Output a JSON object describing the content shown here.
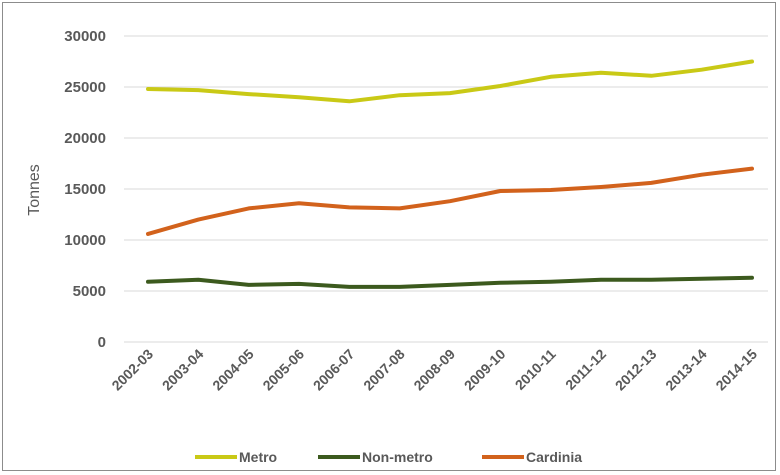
{
  "chart_data": {
    "type": "line",
    "title": "",
    "xlabel": "",
    "ylabel": "Tonnes",
    "ylim": [
      0,
      30000
    ],
    "yticks": [
      "0",
      "5000",
      "10000",
      "15000",
      "20000",
      "25000",
      "30000"
    ],
    "categories": [
      "2002-03",
      "2003-04",
      "2004-05",
      "2005-06",
      "2006-07",
      "2007-08",
      "2008-09",
      "2009-10",
      "2010-11",
      "2011-12",
      "2012-13",
      "2013-14",
      "2014-15"
    ],
    "grid": "horizontal",
    "legend_position": "bottom",
    "series": [
      {
        "name": "Metro",
        "color": "#c9c916",
        "values": [
          24800,
          24700,
          24300,
          24000,
          23600,
          24200,
          24400,
          25100,
          26000,
          26400,
          26100,
          26700,
          27500
        ]
      },
      {
        "name": "Non-metro",
        "color": "#3c5a1e",
        "values": [
          5900,
          6100,
          5600,
          5700,
          5400,
          5400,
          5600,
          5800,
          5900,
          6100,
          6100,
          6200,
          6300
        ]
      },
      {
        "name": "Cardinia",
        "color": "#d2621c",
        "values": [
          10600,
          12000,
          13100,
          13600,
          13200,
          13100,
          13800,
          14800,
          14900,
          15200,
          15600,
          16400,
          17000
        ]
      }
    ]
  }
}
